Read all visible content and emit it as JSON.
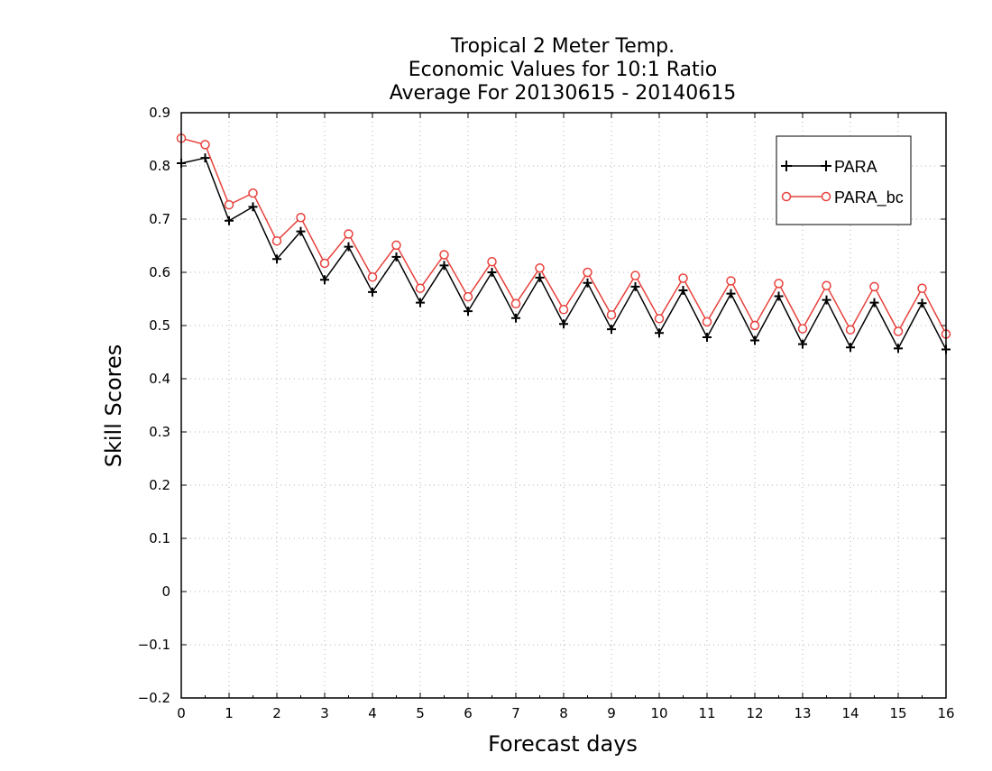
{
  "chart_data": {
    "type": "line",
    "title_lines": [
      "Tropical 2 Meter Temp.",
      "Economic Values for 10:1 Ratio",
      "Average For 20130615 - 20140615"
    ],
    "xlabel": "Forecast days",
    "ylabel": "Skill Scores",
    "xlim": [
      0,
      16
    ],
    "ylim": [
      -0.2,
      0.9
    ],
    "x_ticks": [
      0,
      1,
      2,
      3,
      4,
      5,
      6,
      7,
      8,
      9,
      10,
      11,
      12,
      13,
      14,
      15,
      16
    ],
    "x_tick_labels": [
      "0",
      "1",
      "2",
      "3",
      "4",
      "5",
      "6",
      "7",
      "8",
      "9",
      "10",
      "11",
      "12",
      "13",
      "14",
      "15",
      "16"
    ],
    "y_ticks": [
      -0.2,
      -0.1,
      0,
      0.1,
      0.2,
      0.3,
      0.4,
      0.5,
      0.6,
      0.7,
      0.8,
      0.9
    ],
    "y_tick_labels": [
      "−0.2",
      "−0.1",
      "0",
      "0.1",
      "0.2",
      "0.3",
      "0.4",
      "0.5",
      "0.6",
      "0.7",
      "0.8",
      "0.9"
    ],
    "grid": true,
    "legend_position": "top-right",
    "x": [
      0,
      0.5,
      1,
      1.5,
      2,
      2.5,
      3,
      3.5,
      4,
      4.5,
      5,
      5.5,
      6,
      6.5,
      7,
      7.5,
      8,
      8.5,
      9,
      9.5,
      10,
      10.5,
      11,
      11.5,
      12,
      12.5,
      13,
      13.5,
      14,
      14.5,
      15,
      15.5,
      16
    ],
    "series": [
      {
        "name": "PARA",
        "color": "#000000",
        "marker": "plus",
        "values": [
          0.805,
          0.815,
          0.697,
          0.723,
          0.625,
          0.677,
          0.586,
          0.648,
          0.563,
          0.629,
          0.543,
          0.613,
          0.527,
          0.6,
          0.514,
          0.59,
          0.503,
          0.58,
          0.493,
          0.573,
          0.486,
          0.566,
          0.478,
          0.56,
          0.472,
          0.555,
          0.465,
          0.548,
          0.459,
          0.543,
          0.457,
          0.542,
          0.455
        ]
      },
      {
        "name": "PARA_bc",
        "color": "#e8413c",
        "marker": "circle",
        "values": [
          0.852,
          0.84,
          0.727,
          0.749,
          0.659,
          0.703,
          0.617,
          0.672,
          0.591,
          0.651,
          0.57,
          0.633,
          0.554,
          0.62,
          0.541,
          0.608,
          0.53,
          0.6,
          0.52,
          0.594,
          0.513,
          0.589,
          0.507,
          0.584,
          0.5,
          0.579,
          0.494,
          0.575,
          0.492,
          0.573,
          0.489,
          0.57,
          0.484
        ]
      }
    ]
  }
}
